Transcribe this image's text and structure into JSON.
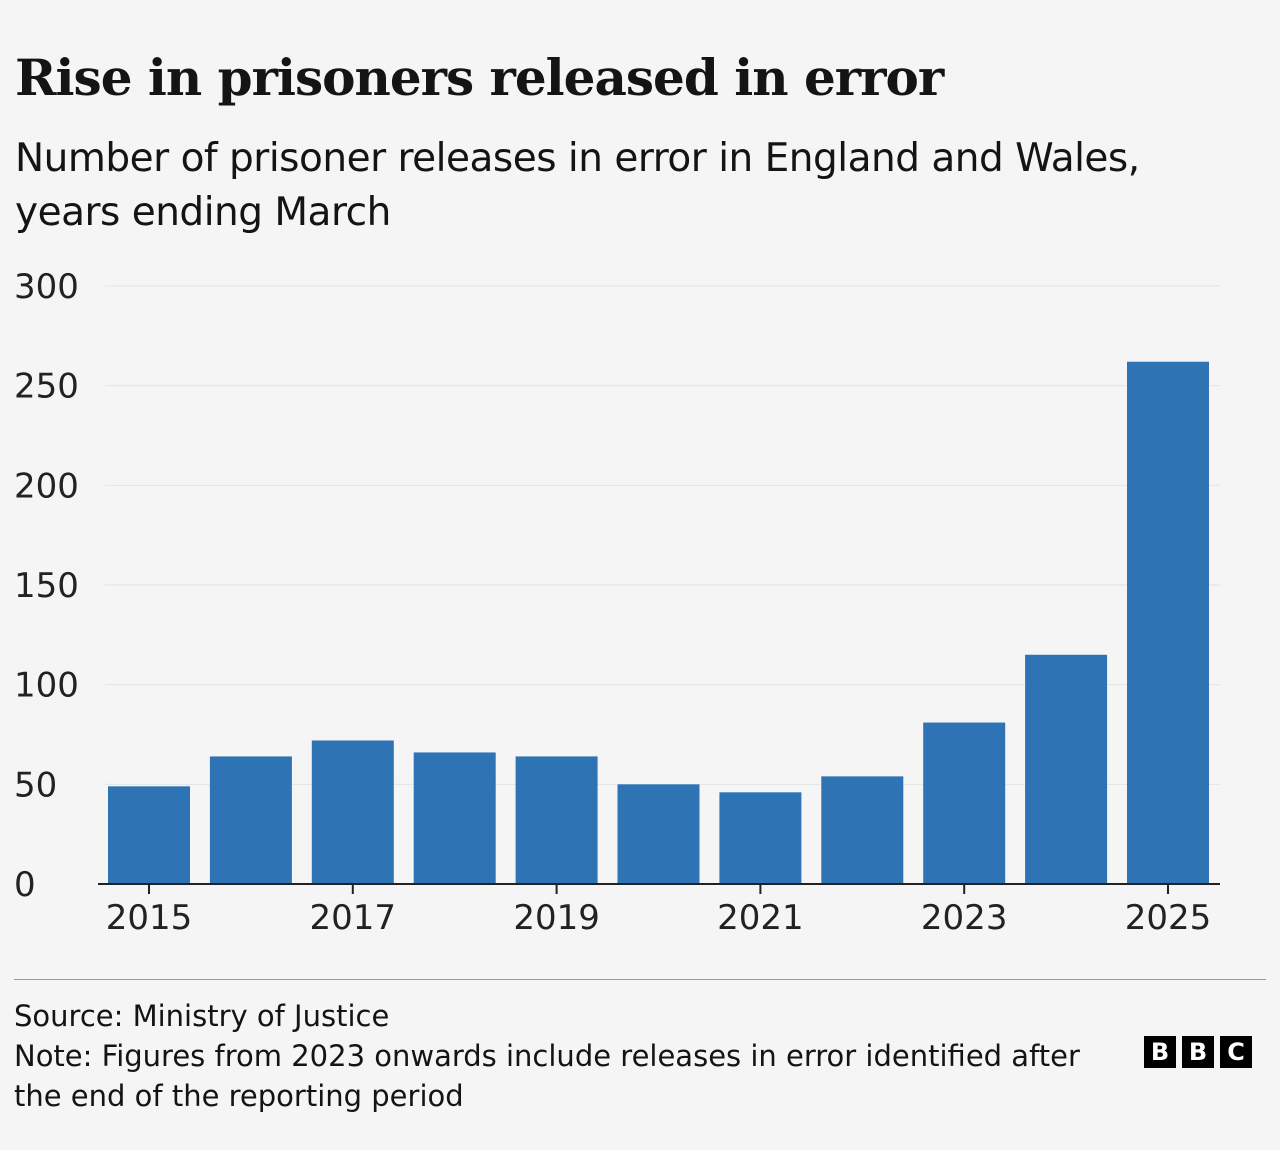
{
  "chart_data": {
    "type": "bar",
    "title": "Rise in prisoners released in error",
    "subtitle": "Number of prisoner releases in error in England and Wales, years ending March",
    "categories": [
      "2015",
      "2016",
      "2017",
      "2018",
      "2019",
      "2020",
      "2021",
      "2022",
      "2023",
      "2024",
      "2025"
    ],
    "values": [
      49,
      64,
      72,
      66,
      64,
      50,
      46,
      54,
      81,
      115,
      262
    ],
    "x_tick_labels": [
      "2015",
      "2017",
      "2019",
      "2021",
      "2023",
      "2025"
    ],
    "y_ticks": [
      0,
      50,
      100,
      150,
      200,
      250,
      300
    ],
    "ylim": [
      0,
      300
    ],
    "grid": true,
    "bar_color": "#2e74b5",
    "xlabel": "",
    "ylabel": ""
  },
  "footer": {
    "source": "Source: Ministry of Justice",
    "note": "Note: Figures from 2023 onwards include releases in error identified after the end of the reporting period",
    "logo": [
      "B",
      "B",
      "C"
    ]
  }
}
